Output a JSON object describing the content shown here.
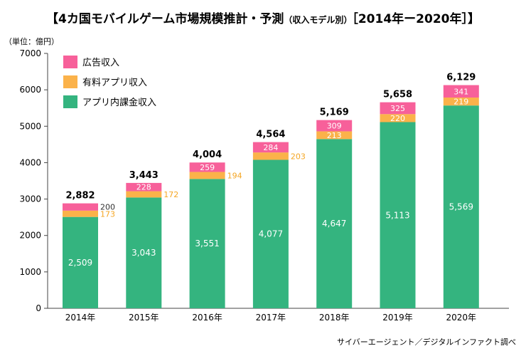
{
  "title": {
    "main": "【4カ国モバイルゲーム市場規模推計・予測",
    "sub": "（収入モデル別）",
    "years": "［2014年ー2020年］】"
  },
  "unit_label": "（単位：億円）",
  "source": "サイバーエージェント／デジタルインファクト調べ",
  "colors": {
    "ad": "#f7609a",
    "paid_app": "#fbb24a",
    "in_app": "#34b47f",
    "paid_label": "#f5a623",
    "axis": "#444444"
  },
  "chart_data": {
    "type": "bar",
    "stacked": true,
    "categories": [
      "2014年",
      "2015年",
      "2016年",
      "2017年",
      "2018年",
      "2019年",
      "2020年"
    ],
    "series": [
      {
        "name": "アプリ内課金収入",
        "values": [
          2509,
          3043,
          3551,
          4077,
          4647,
          5113,
          5569
        ],
        "labels": [
          "2,509",
          "3,043",
          "3,551",
          "4,077",
          "4,647",
          "5,113",
          "5,569"
        ]
      },
      {
        "name": "有料アプリ収入",
        "values": [
          173,
          172,
          194,
          203,
          213,
          220,
          219
        ],
        "labels": [
          "173",
          "172",
          "194",
          "203",
          "213",
          "220",
          "219"
        ]
      },
      {
        "name": "広告収入",
        "values": [
          200,
          228,
          259,
          284,
          309,
          325,
          341
        ],
        "labels": [
          "200",
          "228",
          "259",
          "284",
          "309",
          "325",
          "341"
        ]
      }
    ],
    "totals": [
      2882,
      3443,
      4004,
      4564,
      5169,
      5658,
      6129
    ],
    "total_labels": [
      "2,882",
      "3,443",
      "4,004",
      "4,564",
      "5,169",
      "5,658",
      "6,129"
    ],
    "y_ticks": [
      "0",
      "1000",
      "2000",
      "3000",
      "4000",
      "5000",
      "6000",
      "7000"
    ],
    "ylim": [
      0,
      7000
    ],
    "legend": [
      "広告収入",
      "有料アプリ収入",
      "アプリ内課金収入"
    ],
    "legend_position": "top-left",
    "grid": false
  }
}
